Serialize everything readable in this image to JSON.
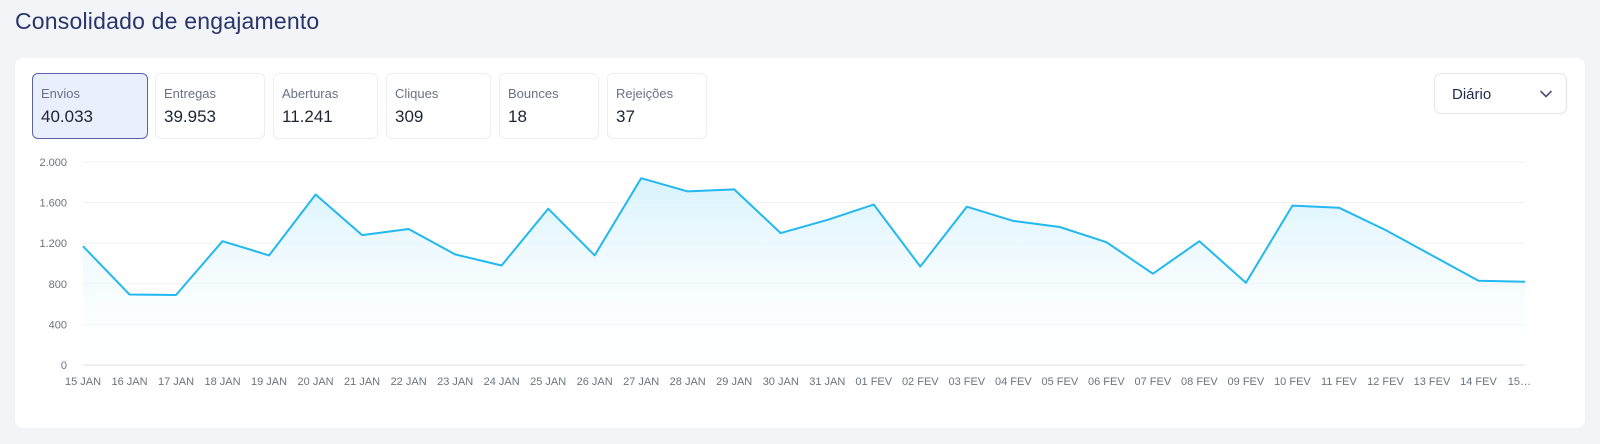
{
  "page": {
    "title": "Consolidado de engajamento"
  },
  "metrics": [
    {
      "label": "Envios",
      "value": "40.033",
      "active": true
    },
    {
      "label": "Entregas",
      "value": "39.953",
      "active": false
    },
    {
      "label": "Aberturas",
      "value": "11.241",
      "active": false
    },
    {
      "label": "Cliques",
      "value": "309",
      "active": false
    },
    {
      "label": "Bounces",
      "value": "18",
      "active": false
    },
    {
      "label": "Rejeições",
      "value": "37",
      "active": false
    }
  ],
  "period_select": {
    "value": "Diário",
    "icon": "chevron-down-icon"
  },
  "colors": {
    "line": "#22b8f0",
    "fill": "#d6f2fc",
    "active_border": "#5863a8",
    "active_bg": "#e9effd"
  },
  "chart_data": {
    "type": "area",
    "title": "",
    "xlabel": "",
    "ylabel": "",
    "ylim": [
      0,
      2000
    ],
    "y_ticks": [
      0,
      400,
      800,
      1200,
      1600,
      2000
    ],
    "y_tick_labels": [
      "0",
      "400",
      "800",
      "1.200",
      "1.600",
      "2.000"
    ],
    "grid": true,
    "legend": "none",
    "categories": [
      "15 JAN",
      "16 JAN",
      "17 JAN",
      "18 JAN",
      "19 JAN",
      "20 JAN",
      "21 JAN",
      "22 JAN",
      "23 JAN",
      "24 JAN",
      "25 JAN",
      "26 JAN",
      "27 JAN",
      "28 JAN",
      "29 JAN",
      "30 JAN",
      "31 JAN",
      "01 FEV",
      "02 FEV",
      "03 FEV",
      "04 FEV",
      "05 FEV",
      "06 FEV",
      "07 FEV",
      "08 FEV",
      "09 FEV",
      "10 FEV",
      "11 FEV",
      "12 FEV",
      "13 FEV",
      "14 FEV",
      "15…"
    ],
    "series": [
      {
        "values": [
          1170,
          695,
          690,
          1220,
          1080,
          1680,
          1280,
          1340,
          1090,
          980,
          1540,
          1080,
          1840,
          1710,
          1730,
          1300,
          1430,
          1580,
          970,
          1560,
          1420,
          1360,
          1210,
          900,
          1220,
          810,
          1570,
          1550,
          1330,
          1080,
          830,
          820
        ]
      }
    ]
  }
}
